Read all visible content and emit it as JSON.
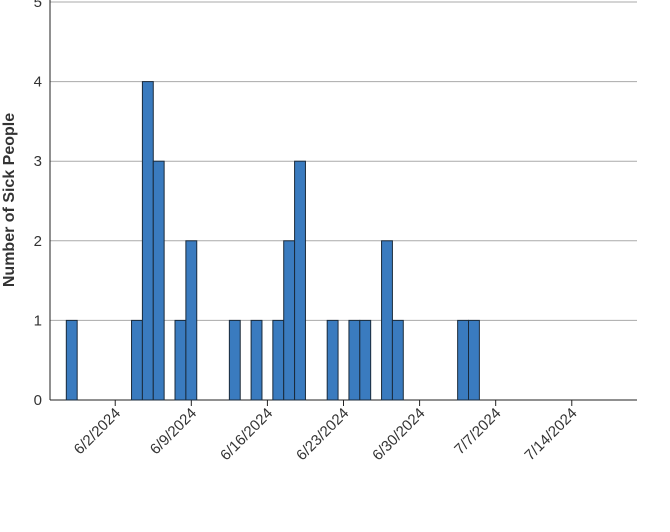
{
  "chart_data": {
    "type": "bar",
    "y_label": "Number of Sick People",
    "x": [
      "5/29/2024",
      "6/4/2024",
      "6/5/2024",
      "6/6/2024",
      "6/8/2024",
      "6/9/2024",
      "6/13/2024",
      "6/15/2024",
      "6/17/2024",
      "6/18/2024",
      "6/19/2024",
      "6/22/2024",
      "6/24/2024",
      "6/25/2024",
      "6/27/2024",
      "6/28/2024",
      "7/4/2024",
      "7/5/2024",
      "7/18/2024"
    ],
    "values": [
      1,
      1,
      4,
      3,
      1,
      2,
      1,
      1,
      1,
      2,
      3,
      1,
      1,
      1,
      2,
      1,
      1,
      1,
      0
    ],
    "color": "#3a7bbf",
    "xlim": [
      "5/27/2024",
      "7/20/2024"
    ],
    "xticks": [
      "6/2/2024",
      "6/9/2024",
      "6/16/2024",
      "6/23/2024",
      "6/30/2024",
      "7/7/2024",
      "7/14/2024"
    ],
    "ylim": [
      0,
      5
    ],
    "yticks": [
      0,
      1,
      2,
      3,
      4,
      5
    ],
    "grid": true
  }
}
